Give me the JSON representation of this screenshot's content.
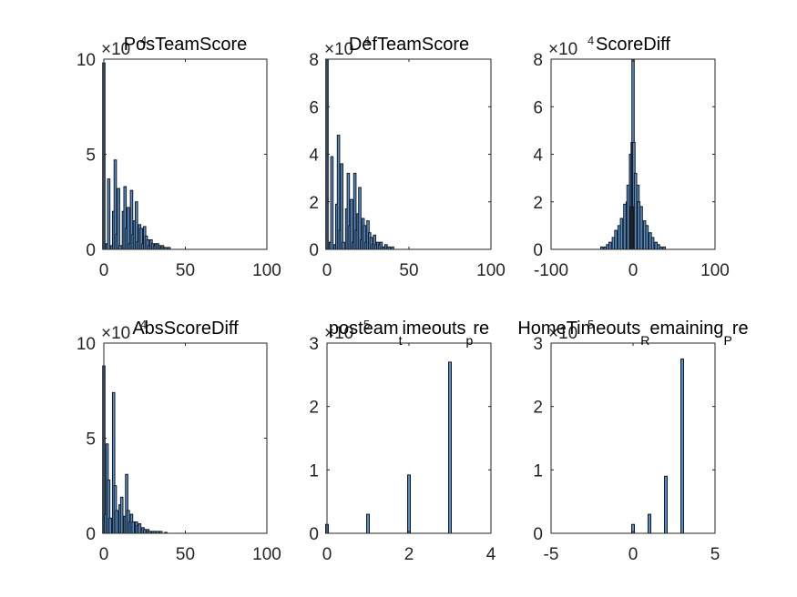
{
  "chart_data": [
    {
      "type": "bar",
      "title": "PosTeamScore",
      "exponent": "×10",
      "exponent_power": "4",
      "xlim": [
        0,
        100
      ],
      "ylim": [
        0,
        10
      ],
      "xticks": [
        "0",
        "50",
        "100"
      ],
      "yticks": [
        "0",
        "5",
        "10"
      ],
      "x": [
        0,
        2,
        3,
        5,
        6,
        7,
        8,
        9,
        10,
        12,
        13,
        14,
        15,
        16,
        17,
        18,
        19,
        20,
        21,
        22,
        23,
        24,
        25,
        26,
        27,
        28,
        29,
        30,
        31,
        32,
        33,
        34,
        35,
        36,
        37,
        38,
        40
      ],
      "values": [
        9.8,
        0.3,
        3.7,
        0.2,
        2.0,
        4.7,
        0.8,
        3.2,
        0.2,
        2.0,
        3.3,
        1.1,
        2.2,
        0.3,
        3.1,
        0.8,
        1.5,
        2.5,
        0.4,
        1.3,
        1.1,
        0.3,
        1.2,
        0.7,
        0.5,
        0.2,
        0.5,
        0.3,
        0.2,
        0.3,
        0.3,
        0.2,
        0.1,
        0.2,
        0.1,
        0.1,
        0.1
      ]
    },
    {
      "type": "bar",
      "title": "DefTeamScore",
      "exponent": "×10",
      "exponent_power": "4",
      "xlim": [
        0,
        100
      ],
      "ylim": [
        0,
        8
      ],
      "xticks": [
        "0",
        "50",
        "100"
      ],
      "yticks": [
        "0",
        "2",
        "4",
        "6",
        "8"
      ],
      "x": [
        0,
        2,
        3,
        5,
        6,
        7,
        8,
        9,
        10,
        12,
        13,
        14,
        15,
        16,
        17,
        18,
        19,
        20,
        21,
        22,
        23,
        24,
        25,
        26,
        27,
        28,
        29,
        30,
        31,
        32,
        33,
        34,
        35,
        36,
        37,
        38,
        40
      ],
      "values": [
        8.0,
        0.3,
        3.9,
        0.2,
        1.9,
        4.8,
        0.8,
        3.6,
        0.3,
        1.7,
        3.2,
        1.0,
        2.1,
        0.3,
        3.2,
        0.8,
        1.5,
        2.6,
        0.4,
        1.3,
        1.0,
        0.3,
        1.2,
        0.7,
        0.5,
        0.2,
        0.6,
        0.2,
        0.3,
        0.2,
        0.3,
        0.1,
        0.1,
        0.2,
        0.1,
        0.1,
        0.1
      ]
    },
    {
      "type": "bar",
      "title": "ScoreDiff",
      "exponent": "×10",
      "exponent_power": "4",
      "xlim": [
        -100,
        100
      ],
      "ylim": [
        0,
        8
      ],
      "xticks": [
        "-100",
        "0",
        "100"
      ],
      "yticks": [
        "0",
        "2",
        "4",
        "6",
        "8"
      ],
      "x": [
        -38,
        -34,
        -31,
        -28,
        -24,
        -21,
        -17,
        -14,
        -10,
        -7,
        -6,
        -3,
        -2,
        -1,
        0,
        1,
        2,
        3,
        6,
        7,
        10,
        14,
        17,
        21,
        24,
        28,
        31,
        34,
        38
      ],
      "values": [
        0.1,
        0.1,
        0.2,
        0.3,
        0.5,
        0.8,
        1.0,
        1.3,
        1.9,
        2.0,
        2.7,
        4.0,
        1.8,
        4.5,
        8.0,
        4.5,
        1.8,
        3.2,
        2.7,
        2.0,
        1.8,
        1.2,
        1.0,
        0.7,
        0.5,
        0.3,
        0.2,
        0.1,
        0.1
      ]
    },
    {
      "type": "bar",
      "title": "AbsScoreDiff",
      "exponent": "×10",
      "exponent_power": "4",
      "xlim": [
        0,
        100
      ],
      "ylim": [
        0,
        10
      ],
      "xticks": [
        "0",
        "50",
        "100"
      ],
      "yticks": [
        "0",
        "5",
        "10"
      ],
      "x": [
        0,
        1,
        2,
        3,
        4,
        6,
        7,
        8,
        10,
        11,
        13,
        14,
        15,
        16,
        17,
        18,
        20,
        21,
        22,
        24,
        25,
        27,
        28,
        30,
        31,
        33,
        35,
        38
      ],
      "values": [
        8.8,
        1.0,
        4.7,
        2.8,
        0.8,
        7.4,
        2.5,
        1.2,
        1.5,
        1.9,
        0.9,
        3.1,
        1.2,
        0.6,
        1.0,
        0.6,
        0.6,
        0.4,
        0.5,
        0.3,
        0.2,
        0.2,
        0.1,
        0.1,
        0.1,
        0.1,
        0.1,
        0.05
      ]
    },
    {
      "type": "bar",
      "title": "posteam",
      "title_sub1": "t",
      "title_mid": "imeouts",
      "title_sub2": "p",
      "title_end": "re",
      "exponent": "×10",
      "exponent_power": "5",
      "xlim": [
        0,
        4
      ],
      "ylim": [
        0,
        3
      ],
      "xticks": [
        "0",
        "2",
        "4"
      ],
      "yticks": [
        "0",
        "1",
        "2",
        "3"
      ],
      "x": [
        0,
        1,
        2,
        3
      ],
      "values": [
        0.14,
        0.3,
        0.92,
        2.7
      ]
    },
    {
      "type": "bar",
      "title": "HomeTimeouts",
      "title_sub1": "R",
      "title_mid": "emaining",
      "title_sub2": "P",
      "title_end": "re",
      "exponent": "×10",
      "exponent_power": "5",
      "xlim": [
        -5,
        5
      ],
      "ylim": [
        0,
        3
      ],
      "xticks": [
        "-5",
        "0",
        "5"
      ],
      "yticks": [
        "0",
        "1",
        "2",
        "3"
      ],
      "x": [
        0,
        1,
        2,
        3
      ],
      "values": [
        0.14,
        0.3,
        0.9,
        2.75
      ]
    }
  ]
}
